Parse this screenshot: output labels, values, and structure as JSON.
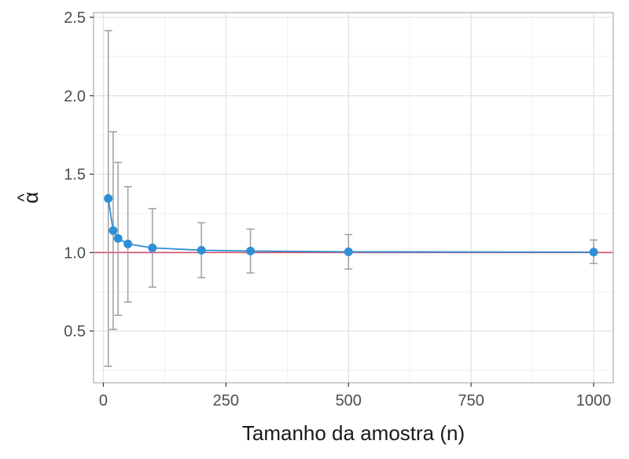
{
  "chart_data": {
    "type": "scatter",
    "title": "",
    "xlabel": "Tamanho da amostra (n)",
    "ylabel": "α",
    "ylabel_accent": "^",
    "xlim": [
      -20,
      1040
    ],
    "ylim": [
      0.17,
      2.53
    ],
    "x_ticks": [
      0,
      250,
      500,
      750,
      1000
    ],
    "x_tick_labels": [
      "0",
      "250",
      "500",
      "750",
      "1000"
    ],
    "y_ticks": [
      0.5,
      1.0,
      1.5,
      2.0,
      2.5
    ],
    "y_tick_labels": [
      "0.5",
      "1.0",
      "1.5",
      "2.0",
      "2.5"
    ],
    "grid": true,
    "reference_line": {
      "y": 1.0,
      "color": "#d6506e"
    },
    "series": [
      {
        "color": "#2e8fd6",
        "errorbar_color": "#9e9e9e",
        "points": [
          {
            "x": 10,
            "y": 1.345,
            "lower": 0.275,
            "upper": 2.415
          },
          {
            "x": 20,
            "y": 1.14,
            "lower": 0.51,
            "upper": 1.77
          },
          {
            "x": 30,
            "y": 1.09,
            "lower": 0.6,
            "upper": 1.575
          },
          {
            "x": 50,
            "y": 1.055,
            "lower": 0.685,
            "upper": 1.42
          },
          {
            "x": 100,
            "y": 1.03,
            "lower": 0.78,
            "upper": 1.28
          },
          {
            "x": 200,
            "y": 1.015,
            "lower": 0.84,
            "upper": 1.19
          },
          {
            "x": 300,
            "y": 1.01,
            "lower": 0.87,
            "upper": 1.15
          },
          {
            "x": 500,
            "y": 1.005,
            "lower": 0.895,
            "upper": 1.115
          },
          {
            "x": 1000,
            "y": 1.003,
            "lower": 0.93,
            "upper": 1.08
          }
        ]
      }
    ]
  }
}
